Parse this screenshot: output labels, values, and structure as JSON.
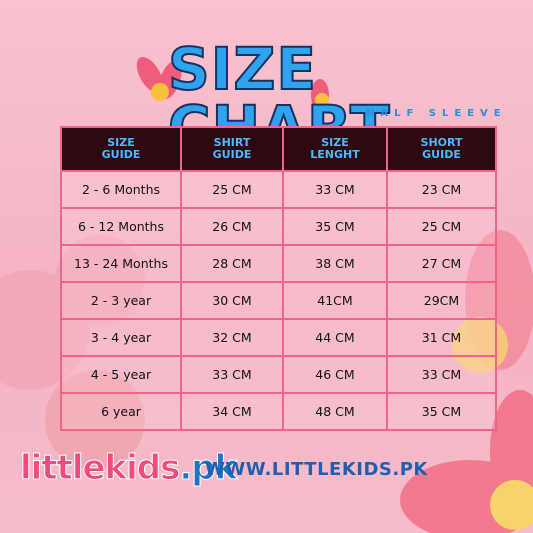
{
  "header": {
    "title": "SIZE CHART",
    "subtitle": "HALF SLEEVE"
  },
  "table": {
    "columns": [
      "SIZE GUIDE",
      "SHIRT GUIDE",
      "SIZE LENGHT",
      "SHORT GUIDE"
    ],
    "rows": [
      [
        "2 - 6 Months",
        "25 CM",
        "33 CM",
        "23 CM"
      ],
      [
        "6 - 12 Months",
        "26 CM",
        "35 CM",
        "25 CM"
      ],
      [
        "13 - 24 Months",
        "28 CM",
        "38 CM",
        "27 CM"
      ],
      [
        "2 - 3 year",
        "30 CM",
        "41CM",
        "29CM"
      ],
      [
        "3 - 4 year",
        "32 CM",
        "44 CM",
        "31 CM"
      ],
      [
        "4 - 5 year",
        "33 CM",
        "46 CM",
        "33 CM"
      ],
      [
        "6 year",
        "34 CM",
        "48 CM",
        "35 CM"
      ]
    ]
  },
  "footer": {
    "logo_name": "littlekids",
    "logo_domain": ".pk",
    "url": "WWW.LITTLEKIDS.PK"
  }
}
